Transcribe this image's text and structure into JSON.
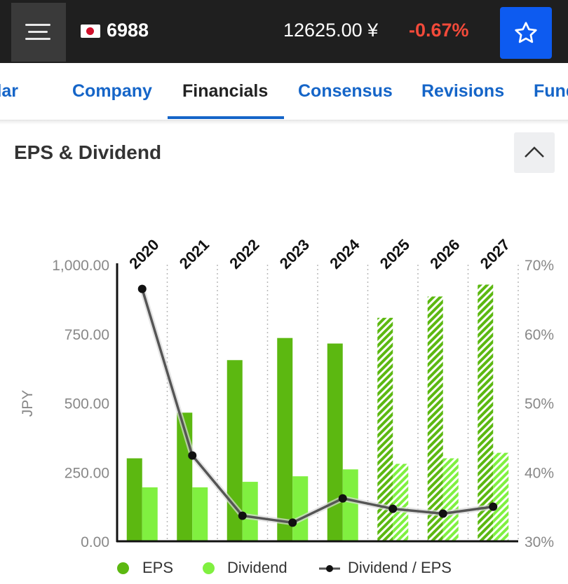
{
  "header": {
    "ticker": "6988",
    "price": "12625.00 ¥",
    "change": "-0.67%",
    "change_color": "#f24a3a",
    "menu_icon": "hamburger-icon",
    "favorite_icon": "star-outline-icon",
    "flag_icon": "japan-flag-icon"
  },
  "tabs": [
    {
      "label": "Calendar"
    },
    {
      "label": "Company"
    },
    {
      "label": "Financials",
      "active": true
    },
    {
      "label": "Consensus"
    },
    {
      "label": "Revisions"
    },
    {
      "label": "Fundamentals"
    }
  ],
  "section": {
    "title": "EPS & Dividend",
    "collapse_icon": "chevron-up-icon"
  },
  "chart_data": {
    "type": "bar",
    "categories": [
      "2020",
      "2021",
      "2022",
      "2023",
      "2024",
      "2025",
      "2026",
      "2027"
    ],
    "estimate_start_index": 5,
    "series": [
      {
        "name": "EPS",
        "axis": "left",
        "color": "#5cb811",
        "values": [
          300,
          465,
          655,
          735,
          715,
          808,
          885,
          928
        ]
      },
      {
        "name": "Dividend",
        "axis": "left",
        "color": "#80f040",
        "values": [
          195,
          195,
          215,
          235,
          260,
          280,
          300,
          320
        ]
      },
      {
        "name": "Dividend / EPS",
        "axis": "right",
        "type": "line",
        "color": "#555555",
        "values": [
          66.5,
          42.4,
          33.7,
          32.7,
          36.2,
          34.7,
          34.0,
          35.0
        ]
      }
    ],
    "yleft": {
      "label": "JPY",
      "min": 0,
      "max": 1000,
      "ticks": [
        "0.00",
        "250.00",
        "500.00",
        "750.00",
        "1,000.00"
      ]
    },
    "yright": {
      "min": 30,
      "max": 70,
      "ticks": [
        "30%",
        "40%",
        "50%",
        "60%",
        "70%"
      ]
    },
    "legend_position": "bottom"
  }
}
